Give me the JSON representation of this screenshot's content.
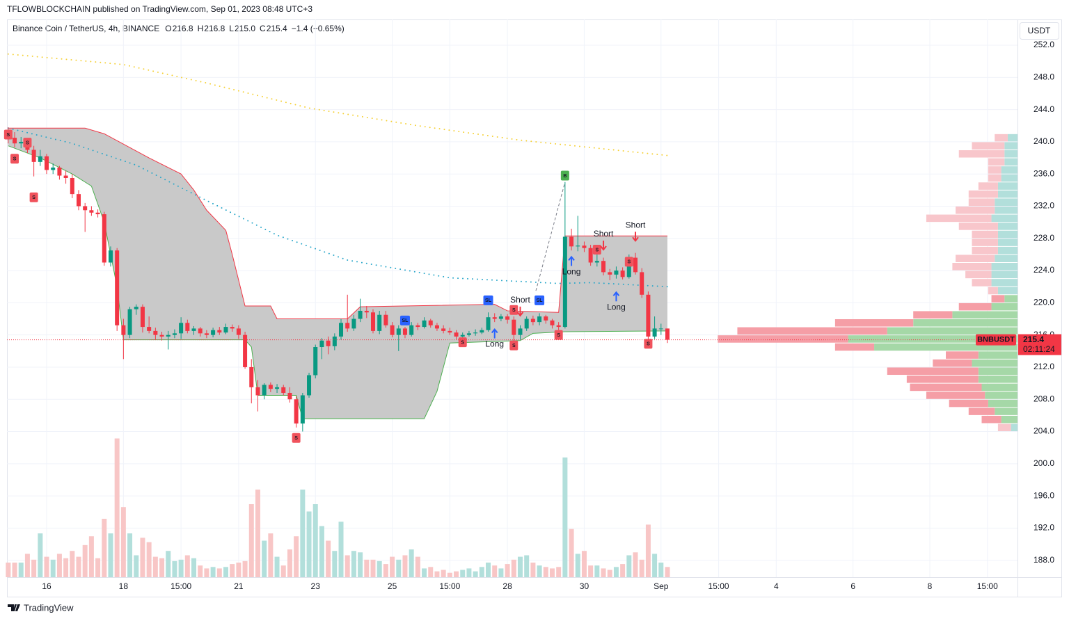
{
  "header": {
    "published": "TFLOWBLOCKCHAIN published on TradingView.com, Sep 01, 2023 08:48 UTC+3",
    "footer": "TradingView",
    "currency": "USDT"
  },
  "chart_data": {
    "type": "candlestick",
    "legend": {
      "symbol": "Binance Coin / TetherUS, 4h, BINANCE",
      "o": "O",
      "open": "216.8",
      "h": "H",
      "high": "216.8",
      "l": "L",
      "low": "215.0",
      "c": "C",
      "close": "215.4",
      "change": "−1.4 (−0.65%)"
    },
    "up_color": "#089981",
    "down_color": "#f23645",
    "up_volume_color": "#b2dfdb",
    "down_volume_color": "#f8c6c6",
    "grid": true,
    "xlim": [
      -0.2,
      157.7
    ],
    "ylim": [
      185.9,
      255.2
    ],
    "yticks": [
      {
        "value": 188,
        "label": "188.0"
      },
      {
        "value": 192,
        "label": "192.0"
      },
      {
        "value": 196,
        "label": "196.0"
      },
      {
        "value": 200,
        "label": "200.0"
      },
      {
        "value": 204,
        "label": "204.0"
      },
      {
        "value": 208,
        "label": "208.0"
      },
      {
        "value": 212,
        "label": "212.0"
      },
      {
        "value": 216,
        "label": "216.0"
      },
      {
        "value": 220,
        "label": "220.0"
      },
      {
        "value": 224,
        "label": "224.0"
      },
      {
        "value": 228,
        "label": "228.0"
      },
      {
        "value": 232,
        "label": "232.0"
      },
      {
        "value": 236,
        "label": "236.0"
      },
      {
        "value": 240,
        "label": "240.0"
      },
      {
        "value": 244,
        "label": "244.0"
      },
      {
        "value": 248,
        "label": "248.0"
      },
      {
        "value": 252,
        "label": "252.0"
      }
    ],
    "xticks": [
      {
        "value": 6,
        "label": "16"
      },
      {
        "value": 18,
        "label": "18"
      },
      {
        "value": 27,
        "label": "15:00"
      },
      {
        "value": 36,
        "label": "21"
      },
      {
        "value": 48,
        "label": "23"
      },
      {
        "value": 60,
        "label": "25"
      },
      {
        "value": 69,
        "label": "15:00"
      },
      {
        "value": 78,
        "label": "28"
      },
      {
        "value": 90,
        "label": "30"
      },
      {
        "value": 102,
        "label": "Sep"
      },
      {
        "value": 111,
        "label": "15:00"
      },
      {
        "value": 120,
        "label": "4"
      },
      {
        "value": 132,
        "label": "6"
      },
      {
        "value": 144,
        "label": "8"
      },
      {
        "value": 153,
        "label": "15:00"
      }
    ],
    "ohlc": [
      [
        241.0,
        241.8,
        239.8,
        240.5
      ],
      [
        240.5,
        241.2,
        239.3,
        239.8
      ],
      [
        239.8,
        240.6,
        239.2,
        240.0
      ],
      [
        240.0,
        240.4,
        238.6,
        239.0
      ],
      [
        239.0,
        239.5,
        235.7,
        237.5
      ],
      [
        237.5,
        239.0,
        237.0,
        238.2
      ],
      [
        238.2,
        238.5,
        236.0,
        236.5
      ],
      [
        236.5,
        237.3,
        236.0,
        236.8
      ],
      [
        236.8,
        237.0,
        235.3,
        235.8
      ],
      [
        235.8,
        236.4,
        234.8,
        235.5
      ],
      [
        235.5,
        236.0,
        233.0,
        233.5
      ],
      [
        233.5,
        234.0,
        231.5,
        232.0
      ],
      [
        232.0,
        232.4,
        228.8,
        231.5
      ],
      [
        231.5,
        232.0,
        230.8,
        231.2
      ],
      [
        231.2,
        231.6,
        230.6,
        231.0
      ],
      [
        231.0,
        231.3,
        224.6,
        225.0
      ],
      [
        225.0,
        227.0,
        224.5,
        226.5
      ],
      [
        226.5,
        226.8,
        216.5,
        217.2
      ],
      [
        217.2,
        218.0,
        213.0,
        216.0
      ],
      [
        216.0,
        219.5,
        215.6,
        219.2
      ],
      [
        219.2,
        219.8,
        218.5,
        219.5
      ],
      [
        219.5,
        219.8,
        216.3,
        217.0
      ],
      [
        217.0,
        218.3,
        216.2,
        216.5
      ],
      [
        216.5,
        216.9,
        215.4,
        216.0
      ],
      [
        216.0,
        216.4,
        215.3,
        215.8
      ],
      [
        215.8,
        216.5,
        214.2,
        216.0
      ],
      [
        216.0,
        216.7,
        215.6,
        216.2
      ],
      [
        216.2,
        218.2,
        215.5,
        217.5
      ],
      [
        217.5,
        217.9,
        216.2,
        216.5
      ],
      [
        216.5,
        217.1,
        216.0,
        216.8
      ],
      [
        216.8,
        217.0,
        215.8,
        216.2
      ],
      [
        216.2,
        216.6,
        215.6,
        216.0
      ],
      [
        216.0,
        216.9,
        215.7,
        216.6
      ],
      [
        216.6,
        217.0,
        216.0,
        216.3
      ],
      [
        216.3,
        217.4,
        216.1,
        217.0
      ],
      [
        217.0,
        217.3,
        216.4,
        216.8
      ],
      [
        216.8,
        217.2,
        215.5,
        216.0
      ],
      [
        216.0,
        216.4,
        211.8,
        212.0
      ],
      [
        212.0,
        213.0,
        207.5,
        209.5
      ],
      [
        209.5,
        210.4,
        206.5,
        208.5
      ],
      [
        208.5,
        210.0,
        208.0,
        209.8
      ],
      [
        209.8,
        210.1,
        208.9,
        209.3
      ],
      [
        209.3,
        209.9,
        208.8,
        209.5
      ],
      [
        209.5,
        209.8,
        208.5,
        208.8
      ],
      [
        208.8,
        209.5,
        207.6,
        208.0
      ],
      [
        208.0,
        208.4,
        204.5,
        205.0
      ],
      [
        205.0,
        208.8,
        204.0,
        208.5
      ],
      [
        208.5,
        211.3,
        208.2,
        211.0
      ],
      [
        211.0,
        214.8,
        210.6,
        214.5
      ],
      [
        214.5,
        215.6,
        213.0,
        215.3
      ],
      [
        215.3,
        215.8,
        213.6,
        214.6
      ],
      [
        214.6,
        216.2,
        214.1,
        215.8
      ],
      [
        215.8,
        218.0,
        215.4,
        217.5
      ],
      [
        217.5,
        221.0,
        216.4,
        216.8
      ],
      [
        216.8,
        218.5,
        216.5,
        218.0
      ],
      [
        218.0,
        220.5,
        217.6,
        219.0
      ],
      [
        219.0,
        219.6,
        218.1,
        218.8
      ],
      [
        218.8,
        219.2,
        216.2,
        216.5
      ],
      [
        216.5,
        219.0,
        216.1,
        218.5
      ],
      [
        218.5,
        219.0,
        216.9,
        217.2
      ],
      [
        217.2,
        217.6,
        215.7,
        216.0
      ],
      [
        216.0,
        217.2,
        214.0,
        216.8
      ],
      [
        216.8,
        217.0,
        215.6,
        216.0
      ],
      [
        216.0,
        217.6,
        215.8,
        217.2
      ],
      [
        217.2,
        217.5,
        216.6,
        217.0
      ],
      [
        217.0,
        218.2,
        216.8,
        217.8
      ],
      [
        217.8,
        218.0,
        216.9,
        217.2
      ],
      [
        217.2,
        217.5,
        216.5,
        216.8
      ],
      [
        216.8,
        217.2,
        216.2,
        216.5
      ],
      [
        216.5,
        216.9,
        216.0,
        216.3
      ],
      [
        216.3,
        216.6,
        215.4,
        215.8
      ],
      [
        215.8,
        216.3,
        215.5,
        216.0
      ],
      [
        216.0,
        216.5,
        215.8,
        216.2
      ],
      [
        216.2,
        216.7,
        215.9,
        216.3
      ],
      [
        216.3,
        216.9,
        216.1,
        216.6
      ],
      [
        216.6,
        218.8,
        216.4,
        218.2
      ],
      [
        218.2,
        218.7,
        217.6,
        218.0
      ],
      [
        218.0,
        218.6,
        217.7,
        218.3
      ],
      [
        218.3,
        218.6,
        217.4,
        217.9
      ],
      [
        217.9,
        218.3,
        215.0,
        216.0
      ],
      [
        216.0,
        217.2,
        215.4,
        216.8
      ],
      [
        216.8,
        218.3,
        216.5,
        218.0
      ],
      [
        218.0,
        218.4,
        217.2,
        217.6
      ],
      [
        217.6,
        218.7,
        217.2,
        218.3
      ],
      [
        218.3,
        218.5,
        217.4,
        217.8
      ],
      [
        217.8,
        218.0,
        216.8,
        217.2
      ],
      [
        217.2,
        217.6,
        216.6,
        217.0
      ],
      [
        217.0,
        235.0,
        216.8,
        228.2
      ],
      [
        228.2,
        229.2,
        226.5,
        227.0
      ],
      [
        227.0,
        230.8,
        226.4,
        227.1
      ],
      [
        227.1,
        227.6,
        226.3,
        226.8
      ],
      [
        226.8,
        227.2,
        224.6,
        225.0
      ],
      [
        225.0,
        226.0,
        224.5,
        225.2
      ],
      [
        225.2,
        225.6,
        223.4,
        223.8
      ],
      [
        223.8,
        224.2,
        222.8,
        223.5
      ],
      [
        223.5,
        224.5,
        223.0,
        224.0
      ],
      [
        224.0,
        224.4,
        222.9,
        223.2
      ],
      [
        223.2,
        226.0,
        223.0,
        225.6
      ],
      [
        225.6,
        226.2,
        223.5,
        223.8
      ],
      [
        223.8,
        224.3,
        220.6,
        221.0
      ],
      [
        221.0,
        221.4,
        215.2,
        215.8
      ],
      [
        215.8,
        218.3,
        215.5,
        216.8
      ],
      [
        216.8,
        217.4,
        216.0,
        216.8
      ],
      [
        216.8,
        216.8,
        215.0,
        215.4
      ]
    ],
    "volume": [
      10,
      10,
      10,
      16,
      12,
      30,
      14,
      12,
      16,
      13,
      18,
      14,
      22,
      28,
      13,
      40,
      30,
      95,
      48,
      30,
      15,
      27,
      24,
      14,
      13,
      18,
      11,
      12,
      15,
      13,
      8,
      6,
      7,
      6,
      7,
      9,
      10,
      11,
      50,
      60,
      25,
      30,
      14,
      8,
      19,
      28,
      60,
      45,
      50,
      35,
      25,
      18,
      38,
      15,
      18,
      17,
      12,
      12,
      11,
      9,
      14,
      12,
      15,
      19,
      14,
      6,
      7,
      4,
      5,
      3,
      4,
      5,
      6,
      4,
      7,
      10,
      8,
      6,
      9,
      12,
      14,
      15,
      10,
      8,
      7,
      6,
      7,
      82,
      33,
      16,
      18,
      8,
      8,
      6,
      5,
      7,
      9,
      15,
      17,
      12,
      36,
      16,
      10,
      7
    ],
    "vlim": [
      0,
      100
    ],
    "band": {
      "fill": "#c6c6c6",
      "upper_color": "#f23645",
      "lower_color": "#4caf50",
      "upper": {
        "x": [
          0,
          12,
          15,
          22,
          27,
          29,
          31,
          34,
          35,
          37,
          41,
          42,
          53,
          55,
          76,
          78,
          86,
          87,
          103
        ],
        "values": [
          241.7,
          241.7,
          241.0,
          238.0,
          236.0,
          234.0,
          231.5,
          229.0,
          226.0,
          219.6,
          219.6,
          218.0,
          218.0,
          219.5,
          219.8,
          219.0,
          218.8,
          228.3,
          228.3
        ]
      },
      "lower": {
        "x": [
          0,
          5,
          10,
          13,
          15,
          17,
          18,
          37,
          38,
          39,
          45,
          46,
          65,
          67,
          69,
          80,
          82,
          87,
          103
        ],
        "values": [
          239.5,
          238.0,
          236.0,
          234.5,
          230.0,
          222.0,
          215.4,
          215.4,
          214.5,
          208.5,
          208.5,
          205.6,
          205.6,
          209.0,
          215.0,
          215.3,
          216.2,
          216.4,
          216.5
        ]
      }
    },
    "moving_averages": [
      {
        "color": "#f5d033",
        "x": [
          0,
          18,
          31,
          47,
          64,
          80,
          103
        ],
        "values": [
          250.9,
          249.6,
          247.3,
          244.2,
          242.0,
          240.2,
          238.3
        ]
      },
      {
        "color": "#26a6c9",
        "x": [
          0,
          10,
          20,
          31,
          42,
          53,
          69,
          86,
          91,
          103
        ],
        "values": [
          241.7,
          239.8,
          237.1,
          232.7,
          228.4,
          225.3,
          223.1,
          222.4,
          222.5,
          222.0
        ]
      }
    ],
    "signals": [
      {
        "text": "S",
        "color": "#f0525c",
        "x": 0,
        "y": 240.9
      },
      {
        "text": "S",
        "color": "#f0525c",
        "x": 1,
        "y": 237.9
      },
      {
        "text": "S",
        "color": "#f0525c",
        "x": 3,
        "y": 239.9
      },
      {
        "text": "S",
        "color": "#f0525c",
        "x": 4,
        "y": 233.1
      },
      {
        "text": "S",
        "color": "#f0525c",
        "x": 45,
        "y": 203.2
      },
      {
        "text": "S",
        "color": "#f0525c",
        "x": 71,
        "y": 215.1
      },
      {
        "text": "S",
        "color": "#f0525c",
        "x": 79,
        "y": 214.7
      },
      {
        "text": "S",
        "color": "#f0525c",
        "x": 79,
        "y": 219.1
      },
      {
        "text": "S",
        "color": "#f0525c",
        "x": 86,
        "y": 216.0
      },
      {
        "text": "S",
        "color": "#f0525c",
        "x": 92,
        "y": 226.6
      },
      {
        "text": "S",
        "color": "#f0525c",
        "x": 97,
        "y": 225.1
      },
      {
        "text": "S",
        "color": "#f0525c",
        "x": 100,
        "y": 214.9
      },
      {
        "text": "B",
        "color": "#4caf50",
        "x": 87,
        "y": 235.8
      },
      {
        "text": "SL",
        "color": "#2962ff",
        "x": 62,
        "y": 217.8
      },
      {
        "text": "SL",
        "color": "#2962ff",
        "x": 75,
        "y": 220.3
      },
      {
        "text": "SL",
        "color": "#2962ff",
        "x": 83,
        "y": 220.3
      }
    ],
    "annotations": [
      {
        "text": "Short",
        "x": 80,
        "y": 220.3,
        "arrow": "down"
      },
      {
        "text": "Short",
        "x": 93,
        "y": 228.5,
        "arrow": "down"
      },
      {
        "text": "Short",
        "x": 98,
        "y": 229.6,
        "arrow": "down"
      },
      {
        "text": "Long",
        "x": 76,
        "y": 214.8,
        "arrow": "up"
      },
      {
        "text": "Long",
        "x": 88,
        "y": 223.8,
        "arrow": "up"
      },
      {
        "text": "Long",
        "x": 95,
        "y": 219.4,
        "arrow": "up"
      }
    ],
    "volume_profile": {
      "profile_xlim": [
        0,
        470
      ],
      "value_area": [
        205,
        221
      ],
      "up_color": "#b2dfdb",
      "down_color": "#f8c6cb",
      "va_up_color": "#a5d8a7",
      "va_down_color": "#f59ea6",
      "rows": [
        204,
        205,
        206,
        207,
        208,
        209,
        210,
        211,
        212,
        213,
        214,
        215,
        216,
        217,
        218,
        219,
        220,
        221,
        222,
        223,
        224,
        225,
        226,
        227,
        228,
        229,
        230,
        231,
        232,
        233,
        234,
        235,
        236,
        237,
        238,
        239,
        240
      ],
      "up": [
        10,
        25,
        35,
        45,
        50,
        55,
        60,
        60,
        70,
        60,
        220,
        260,
        200,
        160,
        100,
        40,
        20,
        30,
        40,
        40,
        40,
        35,
        30,
        30,
        30,
        30,
        40,
        35,
        35,
        30,
        30,
        25,
        25,
        20,
        20,
        20,
        15
      ],
      "down": [
        20,
        30,
        40,
        60,
        90,
        110,
        110,
        140,
        60,
        50,
        60,
        200,
        230,
        120,
        60,
        50,
        20,
        15,
        30,
        40,
        60,
        60,
        40,
        40,
        40,
        60,
        100,
        60,
        40,
        45,
        30,
        20,
        20,
        25,
        70,
        50,
        20
      ]
    },
    "last_price": {
      "symbol": "BNBUSDT",
      "price": 215.4,
      "countdown": "02:11:24",
      "color": "#f23645"
    }
  }
}
